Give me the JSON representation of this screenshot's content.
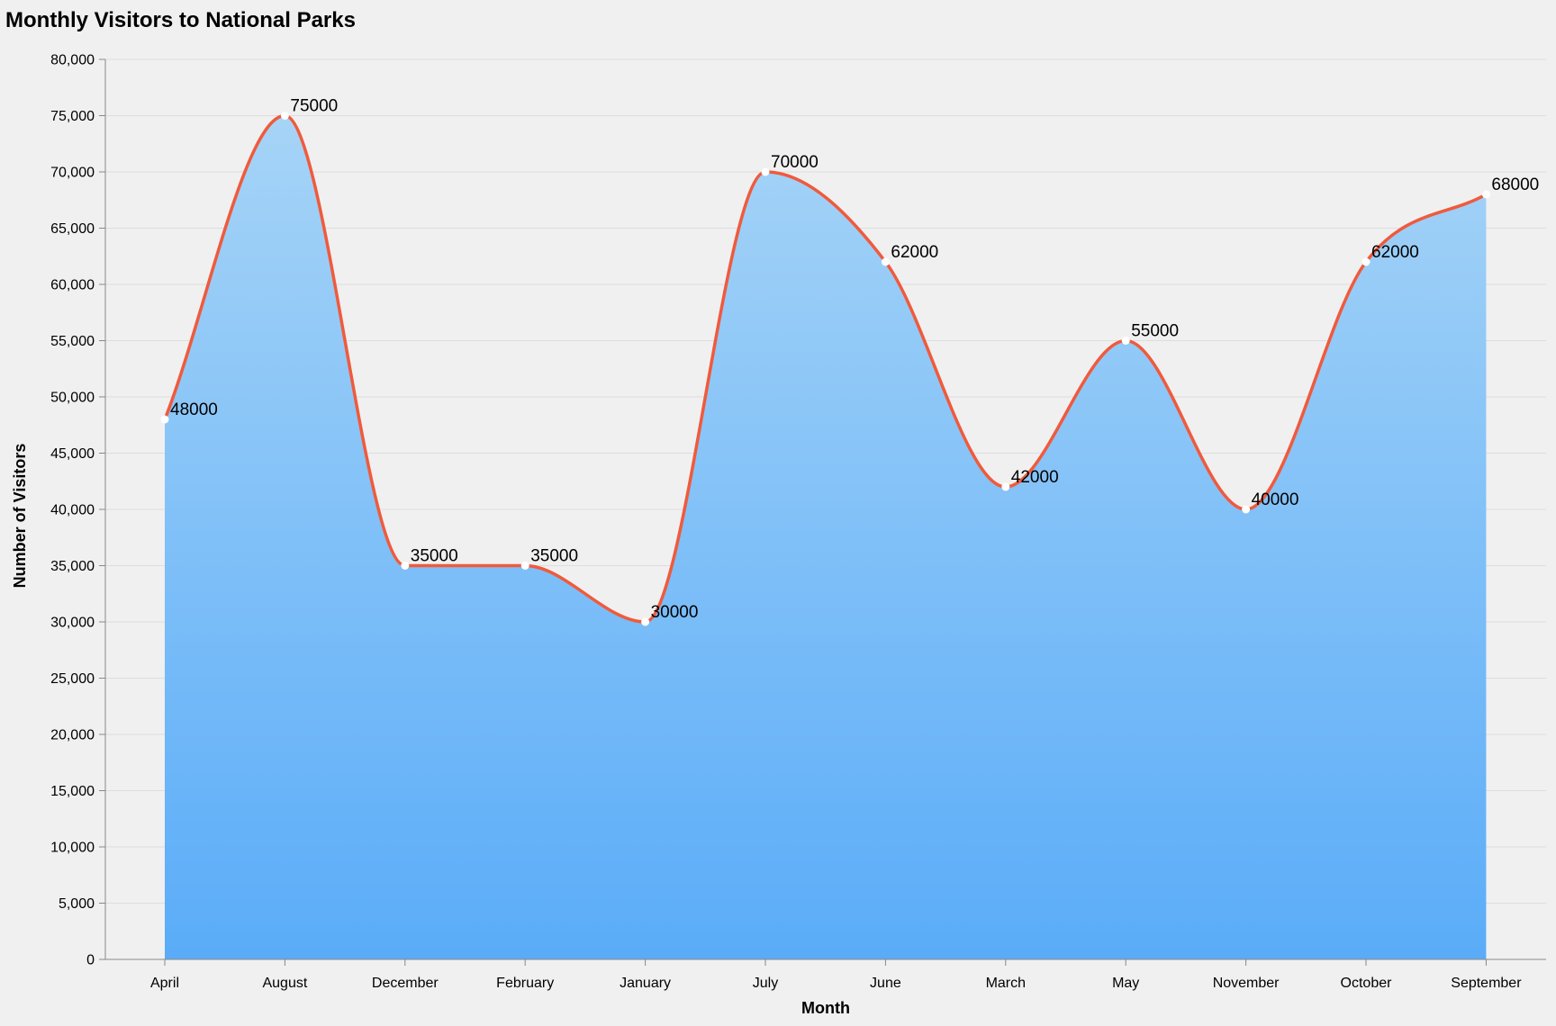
{
  "chart_data": {
    "type": "area",
    "title": "Monthly Visitors to National Parks",
    "xlabel": "Month",
    "ylabel": "Number of Visitors",
    "categories": [
      "April",
      "August",
      "December",
      "February",
      "January",
      "July",
      "June",
      "March",
      "May",
      "November",
      "October",
      "September"
    ],
    "values": [
      48000,
      75000,
      35000,
      35000,
      30000,
      70000,
      62000,
      42000,
      55000,
      40000,
      62000,
      68000
    ],
    "ylim": [
      0,
      80000
    ],
    "yticks": [
      0,
      5000,
      10000,
      15000,
      20000,
      25000,
      30000,
      35000,
      40000,
      45000,
      50000,
      55000,
      60000,
      65000,
      70000,
      75000,
      80000
    ],
    "grid": true,
    "legend": "none",
    "colors": {
      "line": "#f05a3c",
      "area_top": "#a6d4f7",
      "area_bottom": "#5aacf8",
      "point_fill": "#ffffff",
      "grid": "#dddddd",
      "axis": "#888888",
      "background": "#f0f0f0"
    }
  }
}
